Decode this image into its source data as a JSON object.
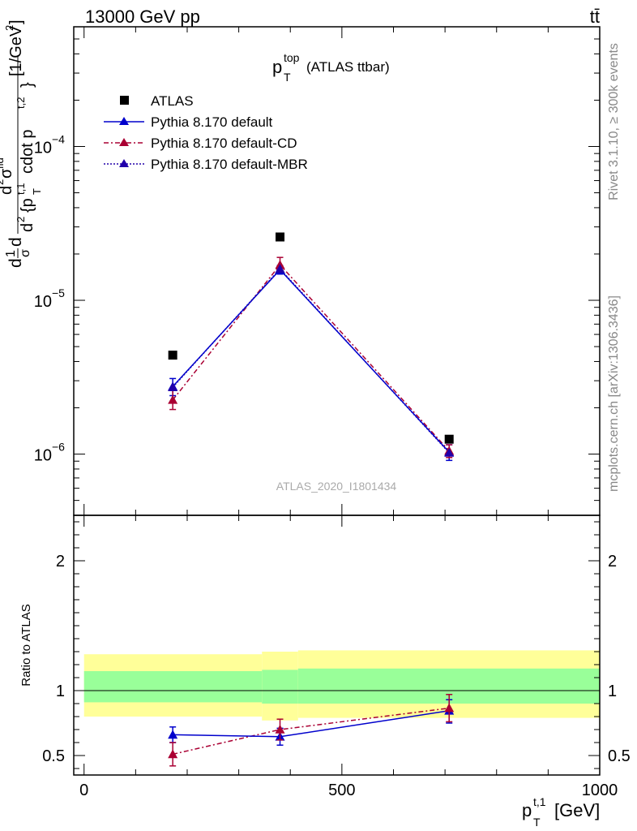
{
  "header": {
    "left_label": "13000 GeV pp",
    "right_label": "tt̄"
  },
  "side_labels": {
    "rivet": "Rivet 3.1.10, ≥ 300k events",
    "mcplots": "mcplots.cern.ch [arXiv:1306.3436]"
  },
  "analysis_id": "ATLAS_2020_I1801434",
  "chart_data": [
    {
      "type": "scatter",
      "panel": "main",
      "title": {
        "base": "p",
        "sup": "top",
        "sub": "T",
        "rest": "(ATLAS ttbar)"
      },
      "ylabel": "d¹⁄σd d²σᶠᵈ / d²{p_T^{t,1} cdot p_T^{t,2}} [1/GeV²]",
      "ylabel_parts": {
        "outer": "d",
        "frac_num": "1",
        "frac_den": "σ",
        "d2": "d",
        "sup2": "2",
        "sigma": "σ",
        "sigma_sup": "fid",
        "den_prefix": "d",
        "den_sup": "2",
        "den_body": "{p",
        "den_sub": "T",
        "den_sup2": "t,1",
        "den_mid": "cdot p",
        "den_sup3": "t,2",
        "den_close": "}",
        "units": "[1/GeV",
        "units_sup": "2",
        "units_close": "]"
      },
      "yscale": "log",
      "ylim": [
        4e-07,
        0.0006
      ],
      "xlim": [
        -20,
        1000
      ],
      "yticks": [
        {
          "value": 1e-06,
          "base": "10",
          "exp": "−6"
        },
        {
          "value": 1e-05,
          "base": "10",
          "exp": "−5"
        },
        {
          "value": 0.0001,
          "base": "10",
          "exp": "−4"
        }
      ],
      "legend_position": "top-left",
      "series": [
        {
          "name": "ATLAS",
          "style": "data",
          "color": "#000000",
          "marker": "square",
          "x": [
            172,
            380,
            708
          ],
          "y": [
            4.4e-06,
            2.58e-05,
            1.25e-06
          ]
        },
        {
          "name": "Pythia 8.170 default",
          "style": "solid",
          "color": "#0000cc",
          "marker": "triangle",
          "x": [
            172,
            380,
            708
          ],
          "y": [
            2.75e-06,
            1.58e-05,
            1.03e-06
          ],
          "yerr_lo": [
            2.4e-06,
            1.48e-05,
            9.1e-07
          ],
          "yerr_hi": [
            3.1e-06,
            1.68e-05,
            1.15e-06
          ]
        },
        {
          "name": "Pythia 8.170 default-CD",
          "style": "dashdot",
          "color": "#aa0033",
          "marker": "triangle",
          "x": [
            172,
            380,
            708
          ],
          "y": [
            2.25e-06,
            1.7e-05,
            1.05e-06
          ],
          "yerr_lo": [
            1.95e-06,
            1.55e-05,
            9.5e-07
          ],
          "yerr_hi": [
            2.6e-06,
            1.9e-05,
            1.15e-06
          ]
        },
        {
          "name": "Pythia 8.170 default-MBR",
          "style": "dotted",
          "color": "#2200aa",
          "marker": "triangle",
          "x": [
            172,
            380,
            708
          ],
          "y": [
            2.72e-06,
            1.6e-05,
            1.02e-06
          ]
        }
      ]
    },
    {
      "type": "scatter",
      "panel": "ratio",
      "ylabel": "Ratio to ATLAS",
      "xlabel_parts": {
        "base": "p",
        "sub": "T",
        "sup": "t,1",
        "units": "[GeV]"
      },
      "ylim": [
        0.35,
        2.35
      ],
      "xlim": [
        -20,
        1000
      ],
      "yticks": [
        {
          "value": 0.5,
          "label": "0.5"
        },
        {
          "value": 1,
          "label": "1"
        },
        {
          "value": 2,
          "label": "2"
        }
      ],
      "xticks": [
        {
          "value": 0,
          "label": "0"
        },
        {
          "value": 500,
          "label": "500"
        },
        {
          "value": 1000,
          "label": "1000"
        }
      ],
      "bands": [
        {
          "x0": 0,
          "x1": 345,
          "yellow": [
            0.8,
            1.28
          ],
          "green": [
            0.91,
            1.15
          ]
        },
        {
          "x0": 345,
          "x1": 415,
          "yellow": [
            0.77,
            1.3
          ],
          "green": [
            0.9,
            1.16
          ]
        },
        {
          "x0": 415,
          "x1": 1000,
          "yellow": [
            0.79,
            1.31
          ],
          "green": [
            0.9,
            1.17
          ]
        }
      ],
      "colors": {
        "yellow": "#ffff99",
        "green": "#99ff99"
      },
      "series": [
        {
          "name": "Pythia 8.170 default",
          "style": "solid",
          "color": "#0000cc",
          "x": [
            172,
            380,
            708
          ],
          "y": [
            0.66,
            0.645,
            0.845
          ],
          "yerr_lo": [
            0.6,
            0.58,
            0.75
          ],
          "yerr_hi": [
            0.72,
            0.71,
            0.93
          ]
        },
        {
          "name": "Pythia 8.170 default-CD",
          "style": "dashdot",
          "color": "#aa0033",
          "x": [
            172,
            380,
            708
          ],
          "y": [
            0.51,
            0.7,
            0.865
          ],
          "yerr_lo": [
            0.42,
            0.62,
            0.76
          ],
          "yerr_hi": [
            0.6,
            0.78,
            0.97
          ]
        }
      ]
    }
  ]
}
